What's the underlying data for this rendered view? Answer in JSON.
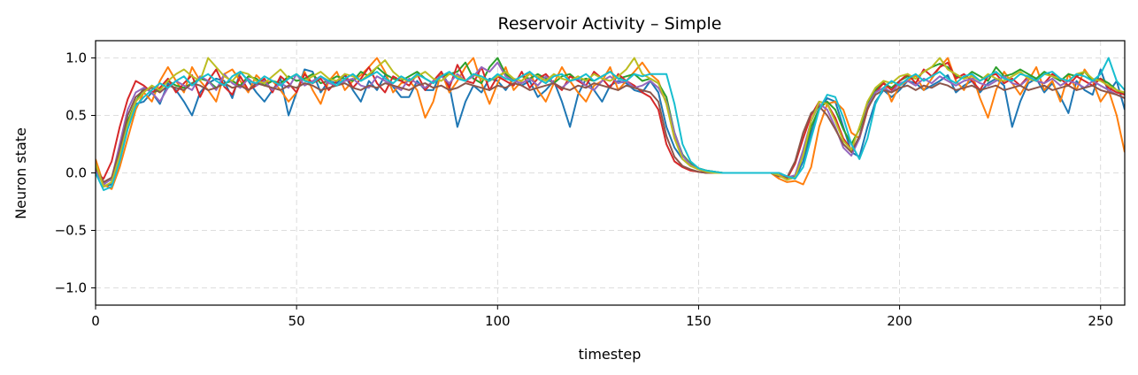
{
  "chart_data": {
    "type": "line",
    "title": "Reservoir Activity – Simple",
    "xlabel": "timestep",
    "ylabel": "Neuron state",
    "xlim": [
      0,
      256
    ],
    "ylim": [
      -1.15,
      1.15
    ],
    "xticks": [
      0,
      50,
      100,
      150,
      200,
      250
    ],
    "yticks": [
      -1.0,
      -0.5,
      0.0,
      0.5,
      1.0
    ],
    "ytick_labels": [
      "−1.0",
      "−0.5",
      "0.0",
      "0.5",
      "1.0"
    ],
    "grid": true,
    "legend": "none",
    "x": [
      0,
      2,
      4,
      6,
      8,
      10,
      12,
      14,
      16,
      18,
      20,
      22,
      24,
      26,
      28,
      30,
      32,
      34,
      36,
      38,
      40,
      42,
      44,
      46,
      48,
      50,
      52,
      54,
      56,
      58,
      60,
      62,
      64,
      66,
      68,
      70,
      72,
      74,
      76,
      78,
      80,
      82,
      84,
      86,
      88,
      90,
      92,
      94,
      96,
      98,
      100,
      102,
      104,
      106,
      108,
      110,
      112,
      114,
      116,
      118,
      120,
      122,
      124,
      126,
      128,
      130,
      132,
      134,
      136,
      138,
      140,
      142,
      144,
      146,
      148,
      150,
      152,
      154,
      156,
      158,
      160,
      162,
      164,
      166,
      168,
      170,
      172,
      174,
      176,
      178,
      180,
      182,
      184,
      186,
      188,
      190,
      192,
      194,
      196,
      198,
      200,
      202,
      204,
      206,
      208,
      210,
      212,
      214,
      216,
      218,
      220,
      222,
      224,
      226,
      228,
      230,
      232,
      234,
      236,
      238,
      240,
      242,
      244,
      246,
      248,
      250,
      252,
      254,
      256
    ],
    "series": [
      {
        "color": "#1f77b4",
        "values": [
          0.1,
          -0.12,
          -0.1,
          0.12,
          0.4,
          0.6,
          0.62,
          0.7,
          0.6,
          0.78,
          0.72,
          0.62,
          0.5,
          0.7,
          0.78,
          0.82,
          0.8,
          0.65,
          0.88,
          0.8,
          0.7,
          0.62,
          0.72,
          0.82,
          0.5,
          0.7,
          0.9,
          0.88,
          0.7,
          0.8,
          0.78,
          0.85,
          0.72,
          0.62,
          0.8,
          0.72,
          0.85,
          0.75,
          0.66,
          0.66,
          0.8,
          0.72,
          0.72,
          0.88,
          0.76,
          0.4,
          0.62,
          0.76,
          0.7,
          0.82,
          0.8,
          0.72,
          0.82,
          0.76,
          0.8,
          0.66,
          0.72,
          0.8,
          0.62,
          0.4,
          0.68,
          0.82,
          0.72,
          0.62,
          0.76,
          0.8,
          0.78,
          0.72,
          0.7,
          0.8,
          0.7,
          0.4,
          0.22,
          0.12,
          0.06,
          0.04,
          0.02,
          0.01,
          0.0,
          0.0,
          0.0,
          0.0,
          0.0,
          0.0,
          0.0,
          0.0,
          -0.03,
          -0.05,
          0.1,
          0.35,
          0.55,
          0.65,
          0.62,
          0.4,
          0.18,
          0.14,
          0.4,
          0.62,
          0.72,
          0.66,
          0.72,
          0.8,
          0.78,
          0.72,
          0.76,
          0.8,
          0.85,
          0.7,
          0.76,
          0.8,
          0.7,
          0.78,
          0.82,
          0.76,
          0.4,
          0.62,
          0.78,
          0.82,
          0.7,
          0.78,
          0.66,
          0.52,
          0.8,
          0.72,
          0.68,
          0.9,
          0.7,
          0.8,
          0.55
        ]
      },
      {
        "color": "#ff7f0e",
        "values": [
          0.12,
          -0.1,
          -0.14,
          0.05,
          0.3,
          0.55,
          0.7,
          0.62,
          0.8,
          0.92,
          0.8,
          0.7,
          0.92,
          0.8,
          0.72,
          0.62,
          0.86,
          0.9,
          0.8,
          0.7,
          0.85,
          0.78,
          0.8,
          0.72,
          0.62,
          0.7,
          0.88,
          0.72,
          0.6,
          0.8,
          0.88,
          0.72,
          0.8,
          0.85,
          0.92,
          1.0,
          0.88,
          0.7,
          0.78,
          0.8,
          0.72,
          0.48,
          0.62,
          0.88,
          0.7,
          0.8,
          0.92,
          1.0,
          0.78,
          0.6,
          0.78,
          0.92,
          0.72,
          0.8,
          0.88,
          0.72,
          0.62,
          0.78,
          0.92,
          0.8,
          0.7,
          0.62,
          0.76,
          0.8,
          0.92,
          0.72,
          0.8,
          0.88,
          0.96,
          0.86,
          0.8,
          0.6,
          0.3,
          0.15,
          0.08,
          0.04,
          0.02,
          0.01,
          0.0,
          0.0,
          0.0,
          0.0,
          0.0,
          0.0,
          0.0,
          -0.05,
          -0.08,
          -0.07,
          -0.1,
          0.05,
          0.4,
          0.6,
          0.62,
          0.55,
          0.35,
          0.3,
          0.55,
          0.72,
          0.8,
          0.62,
          0.76,
          0.8,
          0.85,
          0.72,
          0.82,
          0.92,
          1.0,
          0.8,
          0.72,
          0.86,
          0.65,
          0.48,
          0.72,
          0.88,
          0.78,
          0.68,
          0.8,
          0.92,
          0.72,
          0.8,
          0.62,
          0.86,
          0.72,
          0.9,
          0.8,
          0.62,
          0.72,
          0.5,
          0.18
        ]
      },
      {
        "color": "#2ca02c",
        "values": [
          0.05,
          -0.08,
          -0.06,
          0.18,
          0.45,
          0.62,
          0.74,
          0.7,
          0.72,
          0.8,
          0.76,
          0.74,
          0.78,
          0.82,
          0.8,
          0.74,
          0.78,
          0.8,
          0.76,
          0.84,
          0.82,
          0.76,
          0.8,
          0.78,
          0.84,
          0.8,
          0.82,
          0.86,
          0.78,
          0.8,
          0.84,
          0.82,
          0.8,
          0.88,
          0.84,
          0.92,
          0.86,
          0.82,
          0.8,
          0.84,
          0.88,
          0.82,
          0.78,
          0.84,
          0.86,
          0.88,
          0.96,
          0.82,
          0.78,
          0.92,
          1.0,
          0.86,
          0.8,
          0.84,
          0.82,
          0.86,
          0.82,
          0.78,
          0.84,
          0.86,
          0.8,
          0.82,
          0.8,
          0.84,
          0.88,
          0.82,
          0.84,
          0.86,
          0.8,
          0.82,
          0.78,
          0.66,
          0.35,
          0.16,
          0.08,
          0.04,
          0.02,
          0.01,
          0.0,
          0.0,
          0.0,
          0.0,
          0.0,
          0.0,
          0.0,
          -0.02,
          -0.06,
          -0.03,
          0.15,
          0.4,
          0.56,
          0.62,
          0.55,
          0.38,
          0.25,
          0.38,
          0.6,
          0.72,
          0.78,
          0.74,
          0.8,
          0.84,
          0.82,
          0.88,
          0.92,
          0.95,
          0.92,
          0.84,
          0.82,
          0.88,
          0.84,
          0.8,
          0.92,
          0.84,
          0.86,
          0.9,
          0.86,
          0.82,
          0.88,
          0.84,
          0.8,
          0.86,
          0.84,
          0.88,
          0.8,
          0.82,
          0.78,
          0.72,
          0.68
        ]
      },
      {
        "color": "#d62728",
        "values": [
          0.0,
          -0.05,
          0.1,
          0.4,
          0.64,
          0.8,
          0.76,
          0.7,
          0.74,
          0.82,
          0.7,
          0.78,
          0.85,
          0.66,
          0.8,
          0.9,
          0.75,
          0.68,
          0.84,
          0.72,
          0.76,
          0.82,
          0.7,
          0.84,
          0.78,
          0.7,
          0.86,
          0.78,
          0.82,
          0.72,
          0.8,
          0.86,
          0.74,
          0.82,
          0.92,
          0.78,
          0.7,
          0.84,
          0.8,
          0.76,
          0.86,
          0.72,
          0.8,
          0.88,
          0.74,
          0.94,
          0.8,
          0.78,
          0.92,
          0.72,
          0.84,
          0.8,
          0.76,
          0.88,
          0.74,
          0.82,
          0.86,
          0.78,
          0.72,
          0.84,
          0.8,
          0.76,
          0.88,
          0.82,
          0.74,
          0.86,
          0.8,
          0.76,
          0.7,
          0.66,
          0.55,
          0.25,
          0.1,
          0.05,
          0.02,
          0.01,
          0.0,
          0.0,
          0.0,
          0.0,
          0.0,
          0.0,
          0.0,
          0.0,
          0.0,
          0.0,
          -0.05,
          0.08,
          0.3,
          0.5,
          0.62,
          0.6,
          0.48,
          0.3,
          0.2,
          0.3,
          0.55,
          0.7,
          0.78,
          0.72,
          0.8,
          0.86,
          0.78,
          0.9,
          0.84,
          0.92,
          0.96,
          0.82,
          0.86,
          0.8,
          0.72,
          0.84,
          0.86,
          0.78,
          0.82,
          0.76,
          0.84,
          0.8,
          0.78,
          0.86,
          0.82,
          0.76,
          0.84,
          0.8,
          0.76,
          0.82,
          0.74,
          0.7,
          0.68
        ]
      },
      {
        "color": "#9467bd",
        "values": [
          0.02,
          -0.1,
          -0.05,
          0.25,
          0.55,
          0.7,
          0.74,
          0.7,
          0.62,
          0.74,
          0.8,
          0.76,
          0.72,
          0.84,
          0.8,
          0.72,
          0.86,
          0.78,
          0.74,
          0.82,
          0.76,
          0.8,
          0.72,
          0.78,
          0.74,
          0.86,
          0.76,
          0.8,
          0.84,
          0.78,
          0.76,
          0.8,
          0.82,
          0.76,
          0.74,
          0.84,
          0.8,
          0.76,
          0.72,
          0.82,
          0.78,
          0.74,
          0.8,
          0.84,
          0.78,
          0.86,
          0.8,
          0.84,
          0.92,
          0.88,
          0.96,
          0.84,
          0.8,
          0.78,
          0.82,
          0.76,
          0.84,
          0.78,
          0.74,
          0.8,
          0.82,
          0.76,
          0.72,
          0.8,
          0.84,
          0.78,
          0.8,
          0.74,
          0.76,
          0.8,
          0.74,
          0.62,
          0.35,
          0.15,
          0.07,
          0.03,
          0.01,
          0.0,
          0.0,
          0.0,
          0.0,
          0.0,
          0.0,
          0.0,
          0.0,
          0.0,
          -0.04,
          -0.02,
          0.2,
          0.45,
          0.6,
          0.55,
          0.4,
          0.22,
          0.15,
          0.3,
          0.58,
          0.7,
          0.74,
          0.7,
          0.78,
          0.8,
          0.76,
          0.82,
          0.78,
          0.84,
          0.8,
          0.76,
          0.8,
          0.82,
          0.78,
          0.76,
          0.8,
          0.84,
          0.78,
          0.76,
          0.82,
          0.8,
          0.78,
          0.82,
          0.76,
          0.8,
          0.78,
          0.74,
          0.8,
          0.76,
          0.72,
          0.68,
          0.65
        ]
      },
      {
        "color": "#8c564b",
        "values": [
          0.05,
          -0.08,
          -0.04,
          0.2,
          0.5,
          0.66,
          0.72,
          0.74,
          0.7,
          0.76,
          0.74,
          0.72,
          0.78,
          0.76,
          0.72,
          0.74,
          0.78,
          0.74,
          0.76,
          0.72,
          0.78,
          0.76,
          0.74,
          0.72,
          0.76,
          0.74,
          0.78,
          0.76,
          0.72,
          0.74,
          0.76,
          0.78,
          0.74,
          0.72,
          0.76,
          0.74,
          0.78,
          0.76,
          0.74,
          0.72,
          0.76,
          0.78,
          0.74,
          0.76,
          0.72,
          0.74,
          0.78,
          0.76,
          0.74,
          0.72,
          0.76,
          0.74,
          0.78,
          0.76,
          0.72,
          0.74,
          0.76,
          0.78,
          0.74,
          0.72,
          0.76,
          0.74,
          0.78,
          0.76,
          0.74,
          0.72,
          0.76,
          0.74,
          0.72,
          0.7,
          0.62,
          0.32,
          0.14,
          0.06,
          0.03,
          0.01,
          0.0,
          0.0,
          0.0,
          0.0,
          0.0,
          0.0,
          0.0,
          0.0,
          0.0,
          -0.03,
          -0.04,
          0.1,
          0.35,
          0.52,
          0.58,
          0.5,
          0.38,
          0.25,
          0.18,
          0.32,
          0.56,
          0.68,
          0.72,
          0.7,
          0.74,
          0.76,
          0.72,
          0.76,
          0.74,
          0.78,
          0.76,
          0.72,
          0.74,
          0.76,
          0.72,
          0.74,
          0.76,
          0.72,
          0.74,
          0.76,
          0.72,
          0.74,
          0.76,
          0.72,
          0.74,
          0.76,
          0.72,
          0.74,
          0.76,
          0.72,
          0.7,
          0.68,
          0.65
        ]
      },
      {
        "color": "#bcbd22",
        "values": [
          0.08,
          -0.12,
          -0.08,
          0.15,
          0.42,
          0.62,
          0.7,
          0.76,
          0.72,
          0.8,
          0.86,
          0.9,
          0.84,
          0.8,
          1.0,
          0.92,
          0.84,
          0.8,
          0.88,
          0.86,
          0.8,
          0.78,
          0.84,
          0.9,
          0.82,
          0.86,
          0.8,
          0.84,
          0.88,
          0.82,
          0.8,
          0.86,
          0.84,
          0.8,
          0.86,
          0.92,
          0.98,
          0.88,
          0.82,
          0.8,
          0.84,
          0.88,
          0.82,
          0.8,
          0.86,
          0.84,
          0.8,
          0.86,
          0.82,
          0.8,
          0.84,
          0.88,
          0.82,
          0.8,
          0.86,
          0.84,
          0.8,
          0.86,
          0.82,
          0.8,
          0.84,
          0.8,
          0.86,
          0.82,
          0.8,
          0.84,
          0.9,
          1.0,
          0.86,
          0.82,
          0.78,
          0.6,
          0.3,
          0.12,
          0.06,
          0.03,
          0.01,
          0.0,
          0.0,
          0.0,
          0.0,
          0.0,
          0.0,
          0.0,
          0.0,
          -0.02,
          -0.06,
          -0.04,
          0.15,
          0.45,
          0.62,
          0.6,
          0.45,
          0.28,
          0.2,
          0.4,
          0.62,
          0.74,
          0.8,
          0.78,
          0.84,
          0.86,
          0.82,
          0.88,
          0.92,
          1.0,
          0.9,
          0.86,
          0.82,
          0.84,
          0.8,
          0.86,
          0.82,
          0.8,
          0.84,
          0.88,
          0.82,
          0.8,
          0.86,
          0.84,
          0.82,
          0.8,
          0.86,
          0.88,
          0.82,
          0.8,
          0.76,
          0.72,
          0.7
        ]
      },
      {
        "color": "#17becf",
        "values": [
          0.0,
          -0.15,
          -0.12,
          0.1,
          0.38,
          0.58,
          0.66,
          0.72,
          0.78,
          0.74,
          0.8,
          0.84,
          0.76,
          0.82,
          0.86,
          0.8,
          0.76,
          0.84,
          0.88,
          0.8,
          0.78,
          0.84,
          0.8,
          0.76,
          0.82,
          0.86,
          0.8,
          0.78,
          0.84,
          0.8,
          0.76,
          0.82,
          0.86,
          0.8,
          0.84,
          0.88,
          0.82,
          0.78,
          0.84,
          0.8,
          0.86,
          0.82,
          0.78,
          0.84,
          0.88,
          0.82,
          0.8,
          0.86,
          0.84,
          0.8,
          0.86,
          0.82,
          0.8,
          0.84,
          0.88,
          0.82,
          0.78,
          0.84,
          0.86,
          0.8,
          0.82,
          0.86,
          0.8,
          0.84,
          0.88,
          0.82,
          0.8,
          0.86,
          0.84,
          0.86,
          0.86,
          0.86,
          0.6,
          0.25,
          0.1,
          0.04,
          0.02,
          0.01,
          0.0,
          0.0,
          0.0,
          0.0,
          0.0,
          0.0,
          0.0,
          0.0,
          -0.03,
          -0.05,
          0.05,
          0.3,
          0.55,
          0.68,
          0.66,
          0.48,
          0.25,
          0.12,
          0.3,
          0.6,
          0.74,
          0.8,
          0.76,
          0.82,
          0.86,
          0.8,
          0.84,
          0.88,
          0.82,
          0.78,
          0.84,
          0.86,
          0.8,
          0.84,
          0.88,
          0.82,
          0.8,
          0.86,
          0.84,
          0.8,
          0.86,
          0.88,
          0.82,
          0.8,
          0.86,
          0.84,
          0.8,
          0.86,
          1.0,
          0.8,
          0.72
        ]
      }
    ]
  }
}
